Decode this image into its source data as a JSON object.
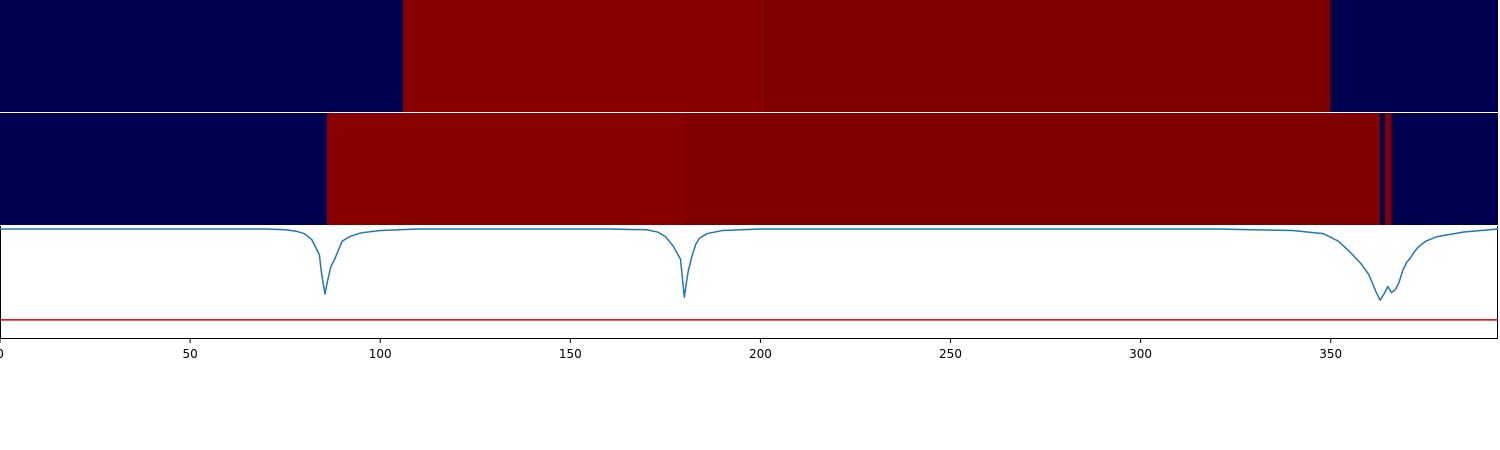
{
  "colors": {
    "background": "#ffffff",
    "navy": "#000050",
    "red_bright": "#880000",
    "red_dark": "#7e0000",
    "line": "#1f77b4",
    "threshold": "#e00000",
    "axis": "#000000",
    "separator": "#ffffff"
  },
  "chart_data": {
    "type": "line",
    "xlim": [
      0,
      394
    ],
    "ylim_trace": [
      -0.72,
      0.02
    ],
    "x_ticks": [
      0,
      50,
      100,
      150,
      200,
      250,
      300,
      350
    ],
    "x_tick_labels": [
      "0",
      "50",
      "100",
      "150",
      "200",
      "250",
      "300",
      "350"
    ],
    "title": "",
    "xlabel": "",
    "ylabel": "",
    "legend": "none",
    "grid": false,
    "segment_tracks": [
      {
        "segments": [
          {
            "start": 0,
            "end": 106,
            "color": "navy"
          },
          {
            "start": 106,
            "end": 201,
            "color": "red_bright"
          },
          {
            "start": 201,
            "end": 350,
            "color": "red_dark"
          },
          {
            "start": 350,
            "end": 394,
            "color": "navy"
          }
        ]
      },
      {
        "segments": [
          {
            "start": 0,
            "end": 86,
            "color": "navy"
          },
          {
            "start": 86,
            "end": 180,
            "color": "red_bright"
          },
          {
            "start": 180,
            "end": 363,
            "color": "red_dark"
          },
          {
            "start": 363,
            "end": 364.3,
            "color": "navy"
          },
          {
            "start": 364.3,
            "end": 366,
            "color": "red_dark"
          },
          {
            "start": 366,
            "end": 394,
            "color": "navy"
          }
        ]
      }
    ],
    "series": [
      {
        "x": [
          0,
          60,
          70,
          75,
          78,
          80,
          82,
          84,
          84.5,
          85,
          85.5,
          86,
          87,
          88,
          90,
          92,
          95,
          100,
          110,
          160,
          170,
          173,
          175,
          177,
          179,
          179.5,
          180,
          180.5,
          181,
          182,
          183,
          184,
          186,
          190,
          200,
          320,
          340,
          348,
          352,
          355,
          358,
          360,
          361,
          362,
          363,
          364,
          365,
          366,
          367,
          368,
          369,
          370,
          371,
          372,
          373,
          374,
          375,
          378,
          385,
          394
        ],
        "y": [
          0,
          0,
          0,
          -0.005,
          -0.015,
          -0.03,
          -0.07,
          -0.17,
          -0.28,
          -0.36,
          -0.43,
          -0.36,
          -0.25,
          -0.2,
          -0.08,
          -0.05,
          -0.025,
          -0.01,
          0,
          0,
          -0.005,
          -0.02,
          -0.05,
          -0.11,
          -0.2,
          -0.33,
          -0.45,
          -0.36,
          -0.28,
          -0.18,
          -0.1,
          -0.06,
          -0.03,
          -0.01,
          0,
          0,
          -0.01,
          -0.03,
          -0.08,
          -0.15,
          -0.23,
          -0.3,
          -0.36,
          -0.42,
          -0.47,
          -0.43,
          -0.38,
          -0.42,
          -0.4,
          -0.35,
          -0.27,
          -0.22,
          -0.19,
          -0.15,
          -0.12,
          -0.1,
          -0.08,
          -0.05,
          -0.02,
          0
        ]
      }
    ],
    "threshold_y": -0.6
  }
}
